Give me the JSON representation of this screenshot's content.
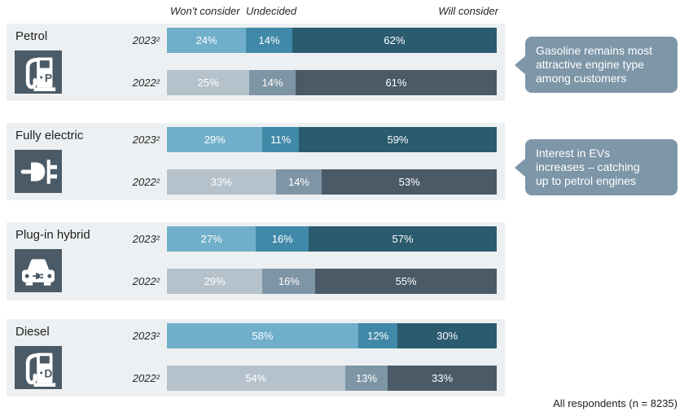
{
  "legend": {
    "wont_consider": "Won't consider",
    "undecided": "Undecided",
    "will_consider": "Will consider"
  },
  "footnote": "All respondents (n = 8235)",
  "colors": {
    "wont_consider_2023": "#6FAFC9",
    "undecided_2023": "#4189A8",
    "will_consider_2023": "#2A5B6F",
    "wont_consider_2022": "#B5C2CC",
    "undecided_2022": "#7E95A5",
    "will_consider_2022": "#4A5A66",
    "panel_bg": "#EDF0F2",
    "icon_bg": "#4A5A66",
    "callout_bg": "#7D96A8"
  },
  "chart_data": {
    "type": "bar",
    "variant": "horizontal-stacked",
    "unit": "%",
    "x_range": [
      0,
      100
    ],
    "categories": [
      "Won't consider",
      "Undecided",
      "Will consider"
    ],
    "legend_position": "top",
    "groups": [
      {
        "label": "Petrol",
        "icon": "fuel-pump-petrol-icon",
        "icon_letter": "P",
        "rows": [
          {
            "year": "2023²",
            "values": [
              24,
              14,
              62
            ],
            "labels": [
              "24%",
              "14%",
              "62%"
            ]
          },
          {
            "year": "2022²",
            "values": [
              25,
              14,
              61
            ],
            "labels": [
              "25%",
              "14%",
              "61%"
            ]
          }
        ]
      },
      {
        "label": "Fully electric",
        "icon": "power-plug-icon",
        "rows": [
          {
            "year": "2023²",
            "values": [
              29,
              11,
              59
            ],
            "labels": [
              "29%",
              "11%",
              "59%"
            ]
          },
          {
            "year": "2022²",
            "values": [
              33,
              14,
              53
            ],
            "labels": [
              "33%",
              "14%",
              "53%"
            ]
          }
        ]
      },
      {
        "label": "Plug-in hybrid",
        "icon": "plug-in-hybrid-car-icon",
        "rows": [
          {
            "year": "2023²",
            "values": [
              27,
              16,
              57
            ],
            "labels": [
              "27%",
              "16%",
              "57%"
            ]
          },
          {
            "year": "2022²",
            "values": [
              29,
              16,
              55
            ],
            "labels": [
              "29%",
              "16%",
              "55%"
            ]
          }
        ]
      },
      {
        "label": "Diesel",
        "icon": "fuel-pump-diesel-icon",
        "icon_letter": "D",
        "rows": [
          {
            "year": "2023²",
            "values": [
              58,
              12,
              30
            ],
            "labels": [
              "58%",
              "12%",
              "30%"
            ]
          },
          {
            "year": "2022²",
            "values": [
              54,
              13,
              33
            ],
            "labels": [
              "54%",
              "13%",
              "33%"
            ]
          }
        ]
      }
    ],
    "annotations": [
      {
        "target": "Petrol",
        "lines": [
          "Gasoline remains most",
          "attractive engine type",
          "among customers"
        ]
      },
      {
        "target": "Fully electric",
        "lines": [
          "Interest in EVs",
          "increases – catching",
          "up to petrol engines"
        ]
      }
    ]
  }
}
